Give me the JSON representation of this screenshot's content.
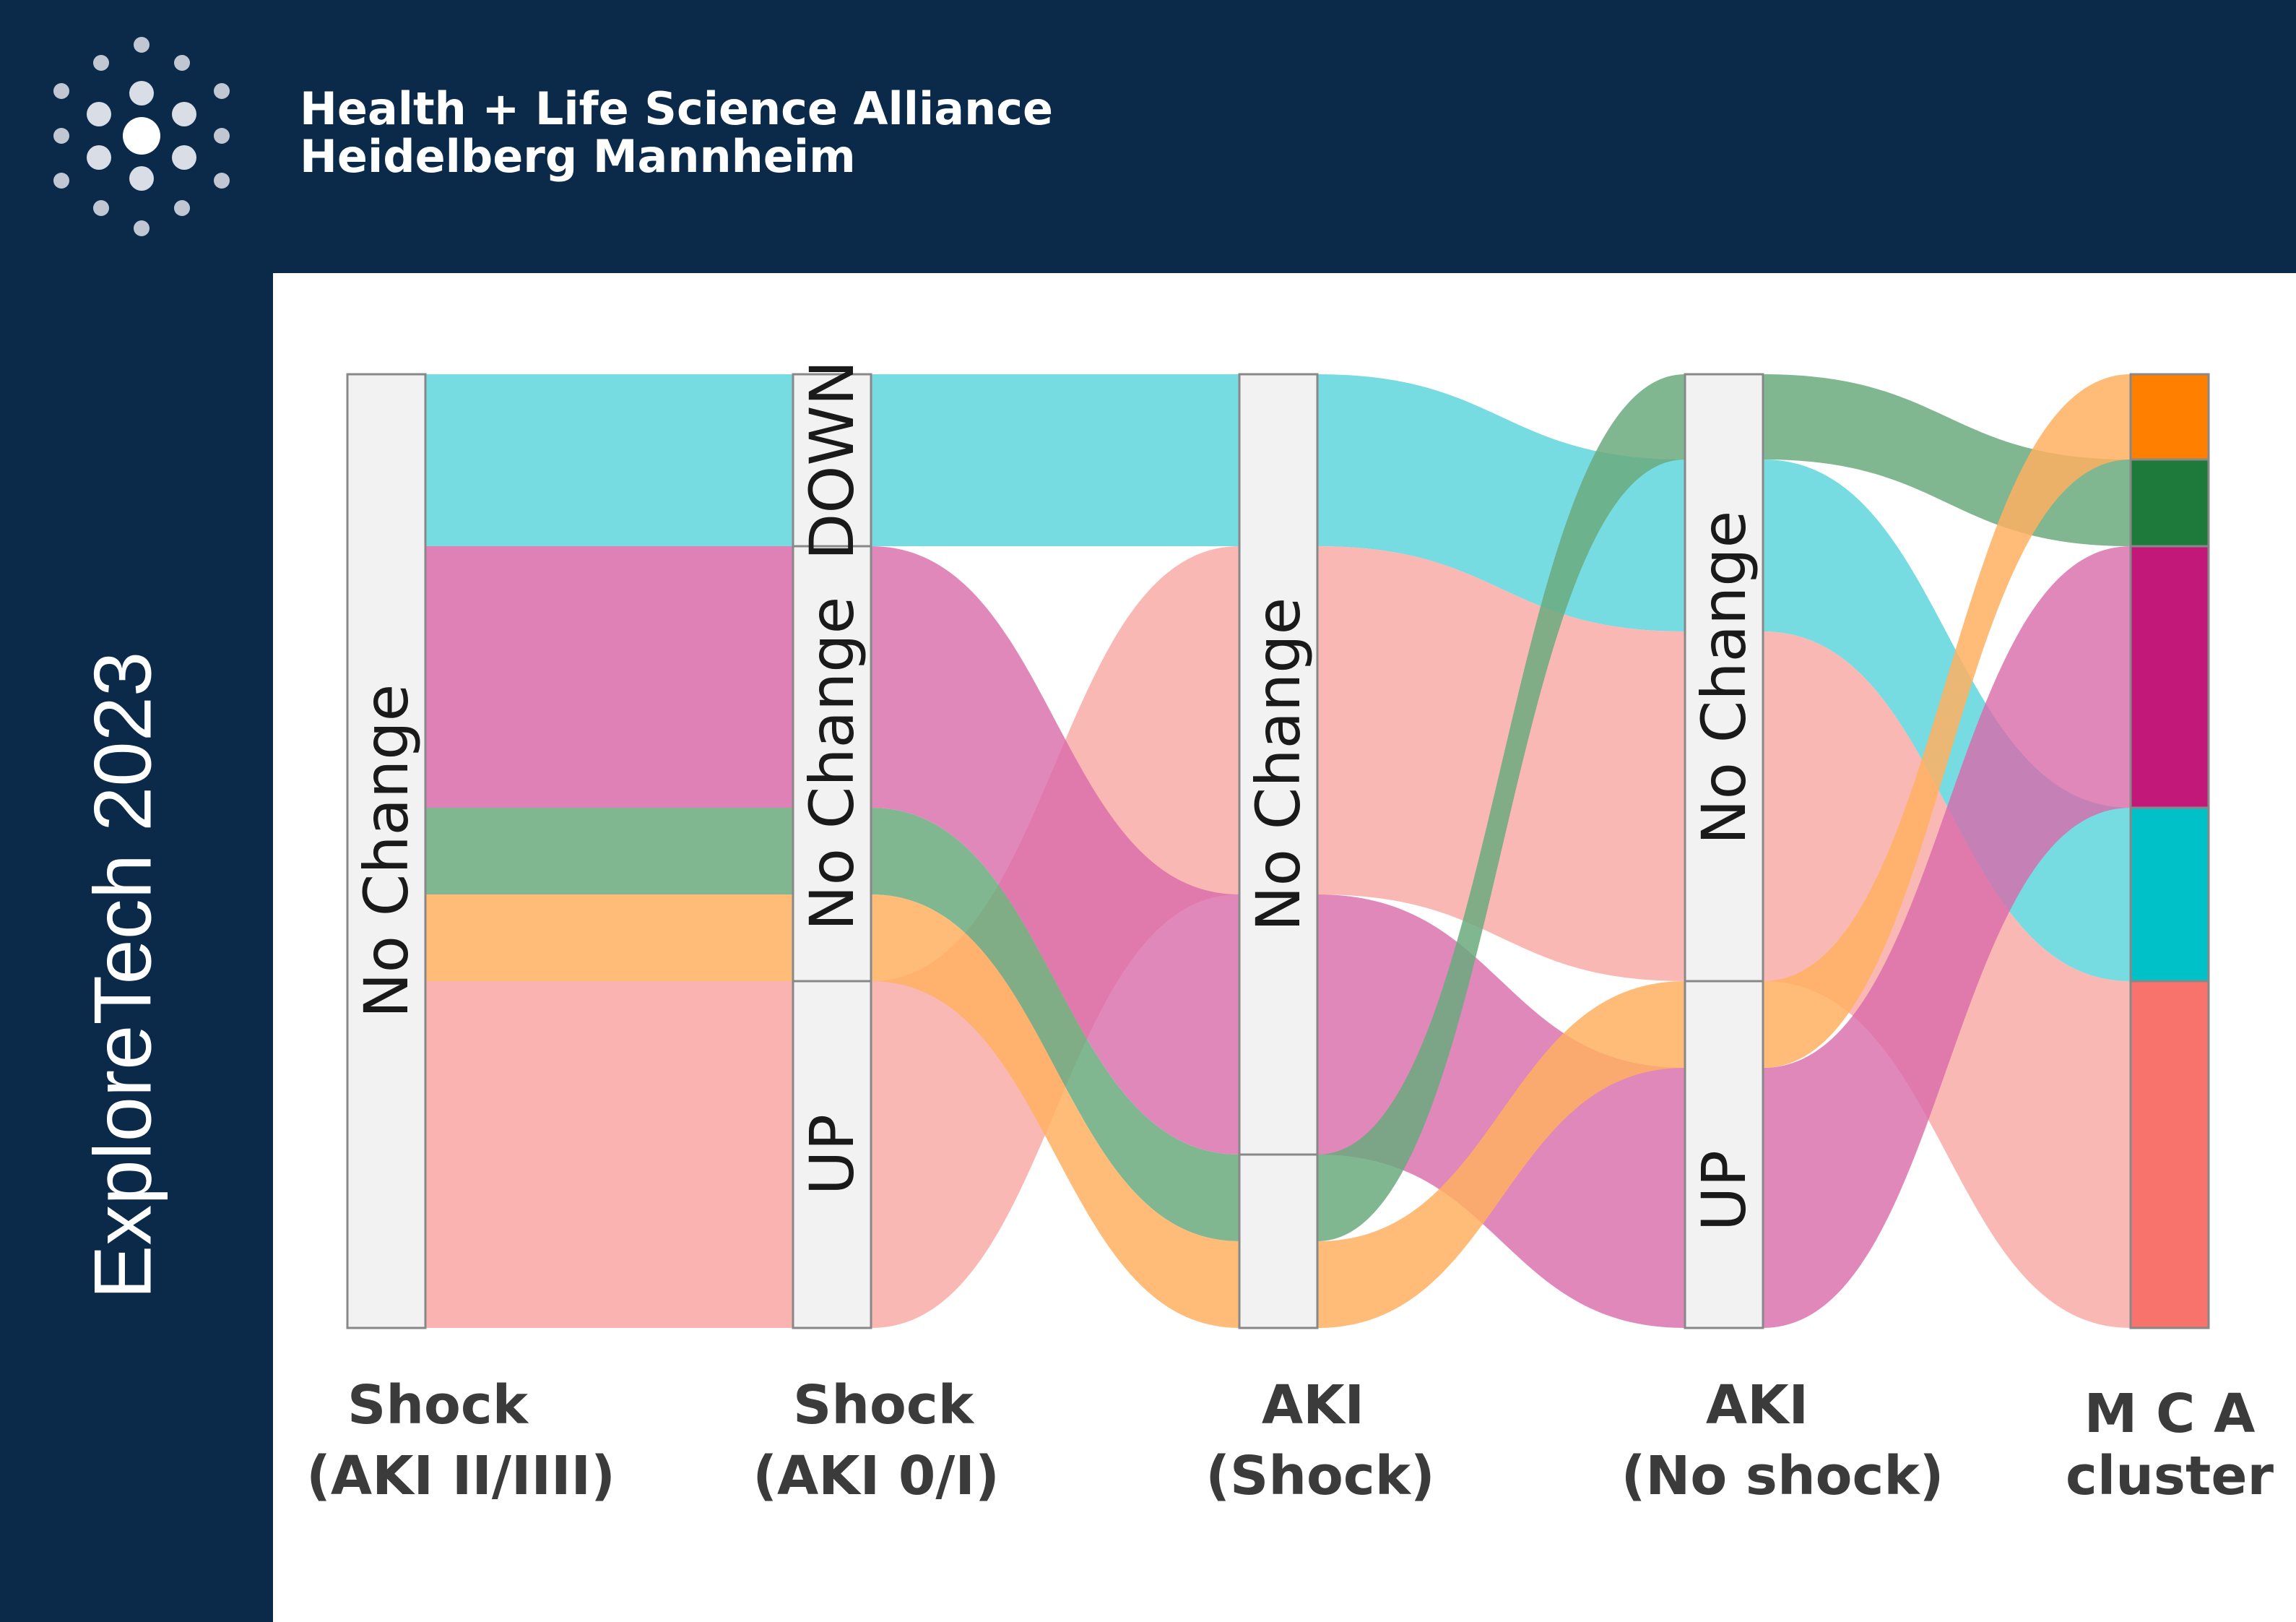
{
  "header": {
    "org_line1": "Health + Life Science Alliance",
    "org_line2": "Heidelberg Mannheim",
    "logo_icon": "dot-burst-logo-icon"
  },
  "sidebar": {
    "title": "ExploreTech 2023"
  },
  "diagram": {
    "type": "alluvial",
    "axes": [
      {
        "line1": "Shock",
        "line2": "(AKI II/IIII)"
      },
      {
        "line1": "Shock",
        "line2": "(AKI 0/I)"
      },
      {
        "line1": "AKI",
        "line2": "(Shock)"
      },
      {
        "line1": "AKI",
        "line2": "(No shock)"
      },
      {
        "line1": "M C A",
        "line2": "cluster"
      }
    ],
    "node_labels": {
      "a1_nochange": "No Change",
      "a2_down": "DOWN",
      "a2_nochange": "No Change",
      "a2_up": "UP",
      "a3_nochange": "No Change",
      "a4_nochange": "No Change",
      "a4_up": "UP"
    },
    "cluster_colors": [
      "#ff7f00",
      "#1e7a3a",
      "#c2187a",
      "#00c0c8",
      "#f7736c"
    ],
    "flow_colors": {
      "cyan": "#5ed6dc",
      "green": "#6aaa7e",
      "magenta": "#d96aaa",
      "orange": "#ffb062",
      "salmon": "#f9a6a3"
    }
  }
}
